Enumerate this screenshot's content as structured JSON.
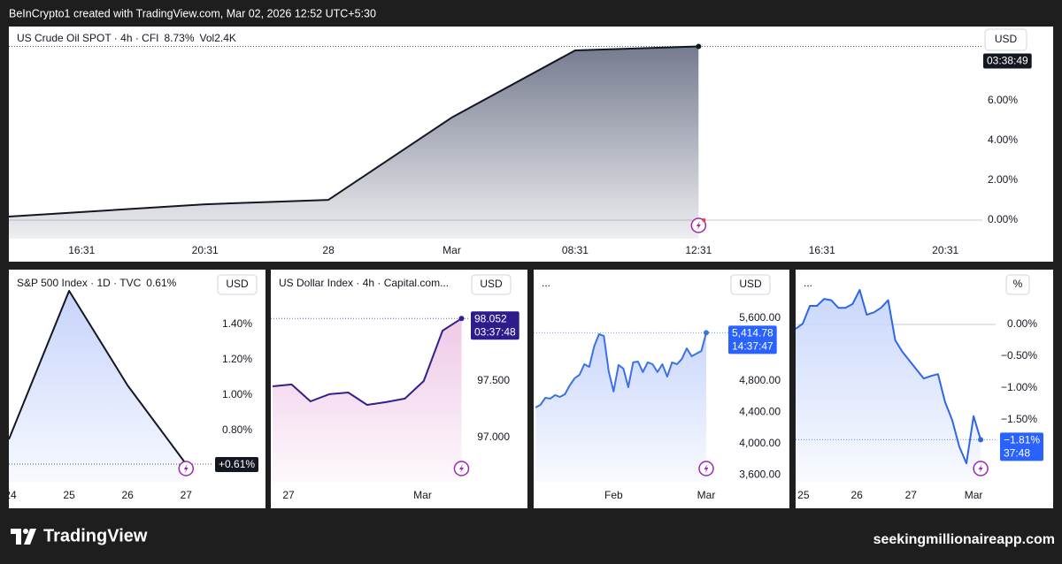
{
  "header": {
    "text": "BeInCrypto1 created with TradingView.com, Mar 02, 2026 12:52 UTC+5:30"
  },
  "footer": {
    "logo_text": "TradingView",
    "site": "seekingmillionaireapp.com"
  },
  "chart_data": [
    {
      "type": "area",
      "title": "US Crude Oil SPOT · 4h · CFI",
      "change": "8.73%",
      "volume": "Vol2.4K",
      "currency": "USD",
      "x": [
        -0.59,
        1,
        2,
        3,
        4,
        5
      ],
      "values": [
        0.18,
        0.8,
        1.02,
        5.16,
        8.53,
        8.73
      ],
      "color": "#131722",
      "area_color": "#6e7489",
      "badge_color": "#131722",
      "countdown": "03:38:49",
      "zero_line": true,
      "xlim": [
        -0.59,
        7.3
      ],
      "ylim": [
        -0.93,
        9.73
      ],
      "xticks": [
        {
          "value": 0,
          "label": "16:31"
        },
        {
          "value": 1,
          "label": "20:31"
        },
        {
          "value": 2,
          "label": "28"
        },
        {
          "value": 3,
          "label": "Mar"
        },
        {
          "value": 4,
          "label": "08:31"
        },
        {
          "value": 5,
          "label": "12:31"
        },
        {
          "value": 6,
          "label": "16:31"
        },
        {
          "value": 7,
          "label": "20:31"
        }
      ],
      "yticks": [
        {
          "value": 0,
          "label": "0.00%"
        },
        {
          "value": 2,
          "label": "2.00%"
        },
        {
          "value": 4,
          "label": "4.00%"
        },
        {
          "value": 6,
          "label": "6.00%"
        }
      ]
    },
    {
      "type": "area",
      "title": "S&P 500 Index · 1D · TVC",
      "change": "0.61%",
      "currency": "USD",
      "x": [
        23.97,
        25,
        26,
        27
      ],
      "values": [
        0.75,
        1.59,
        1.055,
        0.61
      ],
      "last_value_label": "+0.61%",
      "color": "#131722",
      "area_color": "#c3d1fb",
      "badge_color": "#131722",
      "zero_line": false,
      "xlim": [
        23.97,
        27.45
      ],
      "ylim": [
        0.51,
        1.685
      ],
      "xticks": [
        24,
        25,
        26,
        27
      ],
      "yticks": [
        {
          "value": 1.4,
          "label": "1.40%"
        },
        {
          "value": 1.2,
          "label": "1.20%"
        },
        {
          "value": 1,
          "label": "1.00%"
        },
        {
          "value": 0.8,
          "label": "0.80%"
        }
      ]
    },
    {
      "type": "area",
      "title": "US Dollar Index · 4h · Capital.com...",
      "currency": "USD",
      "x": [
        0,
        1,
        2,
        3,
        4,
        5,
        6,
        7,
        8,
        9,
        10
      ],
      "values": [
        97.453,
        97.469,
        97.32,
        97.383,
        97.398,
        97.289,
        97.313,
        97.344,
        97.5,
        97.945,
        98.052
      ],
      "last_value_label": "98.052",
      "countdown": "03:37:48",
      "color": "#33208f",
      "area_color": "#eec6e6",
      "badge_color": "#2e1c8c",
      "zero_line": false,
      "xlim": [
        -0.1,
        10.4
      ],
      "ylim": [
        96.609,
        98.445
      ],
      "xticks": [
        {
          "value": 0.84,
          "label": "27"
        },
        {
          "value": 7.94,
          "label": "Mar"
        }
      ],
      "yticks": [
        {
          "value": 97.5,
          "label": "97.500"
        },
        {
          "value": 97,
          "label": "97.000"
        }
      ]
    },
    {
      "type": "area",
      "title": "...",
      "currency": "USD",
      "x": [
        0,
        1,
        2,
        3,
        4,
        5,
        6,
        7,
        8,
        9,
        10,
        11,
        12,
        13,
        14,
        15,
        16,
        17,
        18,
        19,
        20,
        21,
        22,
        23,
        24,
        25,
        26,
        27,
        28,
        29,
        30,
        31,
        32,
        33,
        34,
        35
      ],
      "values": [
        4462,
        4496,
        4586,
        4575,
        4620,
        4597,
        4631,
        4744,
        4834,
        4879,
        5014,
        4980,
        5239,
        5397,
        5375,
        4924,
        4665,
        5003,
        4958,
        4721,
        5037,
        5048,
        4913,
        5037,
        5014,
        4913,
        5014,
        4856,
        5037,
        5014,
        5082,
        5217,
        5115,
        5149,
        5183,
        5414.78
      ],
      "last_value_label": "5,414.78",
      "countdown": "14:37:47",
      "color": "#3a72e6",
      "area_color": "#c7d5fb",
      "badge_color": "#2962ff",
      "zero_line": false,
      "xlim": [
        -0.4,
        39.9
      ],
      "ylim": [
        3515,
        6163
      ],
      "xticks": [
        {
          "value": 16,
          "label": "Feb"
        },
        {
          "value": 35,
          "label": "Mar"
        }
      ],
      "yticks": [
        {
          "value": 5600,
          "label": "5,600.00"
        },
        {
          "value": 4800,
          "label": "4,800.00"
        },
        {
          "value": 4400,
          "label": "4,400.00"
        },
        {
          "value": 4000,
          "label": "4,000.00"
        },
        {
          "value": 3600,
          "label": "3,600.00"
        }
      ]
    },
    {
      "type": "area",
      "title": "...",
      "currency": "%",
      "x": [
        0,
        1,
        2,
        3,
        4,
        5,
        6,
        7,
        8,
        9,
        10,
        11,
        12,
        13,
        14,
        15,
        16,
        17,
        18,
        19,
        20,
        21,
        22,
        23,
        24,
        25,
        26
      ],
      "values": [
        -0.07,
        0.01,
        0.29,
        0.29,
        0.4,
        0.38,
        0.26,
        0.26,
        0.32,
        0.54,
        0.15,
        0.19,
        0.26,
        0.38,
        -0.25,
        -0.43,
        -0.57,
        -0.71,
        -0.85,
        -0.81,
        -0.78,
        -1.22,
        -1.5,
        -1.92,
        -2.18,
        -1.44,
        -1.81
      ],
      "last_value_label": "−1.81%",
      "countdown": "37:48",
      "color": "#2f66e8",
      "area_color": "#c7d5fb",
      "badge_color": "#2962ff",
      "zero_line": true,
      "xlim": [
        0,
        28.1
      ],
      "ylim": [
        -2.47,
        0.79
      ],
      "xticks": [
        {
          "value": 1.1,
          "label": "25"
        },
        {
          "value": 8.6,
          "label": "26"
        },
        {
          "value": 16.2,
          "label": "27"
        },
        {
          "value": 25,
          "label": "Mar"
        }
      ],
      "yticks": [
        {
          "value": 0,
          "label": "0.00%"
        },
        {
          "value": -0.5,
          "label": "−0.50%"
        },
        {
          "value": -1,
          "label": "−1.00%"
        },
        {
          "value": -1.5,
          "label": "−1.50%"
        }
      ]
    }
  ]
}
